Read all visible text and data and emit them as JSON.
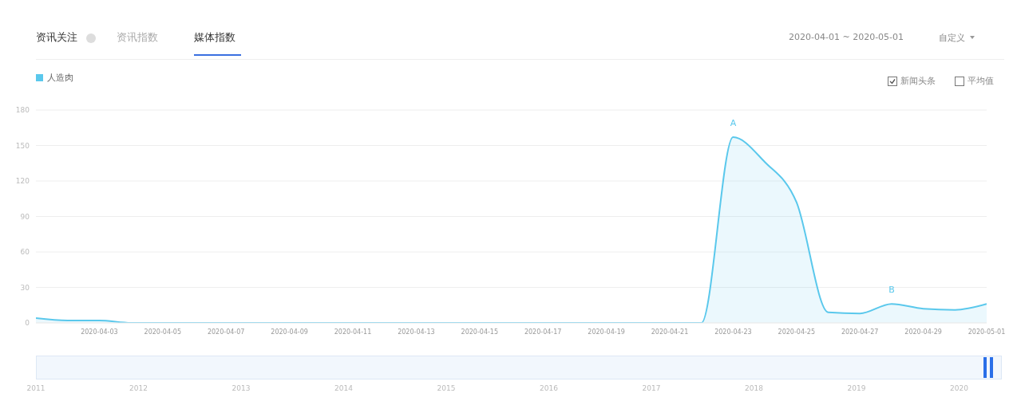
{
  "chart_data": {
    "type": "area",
    "title": "资讯关注",
    "subtitle": "2020-04-01 ~ 2020-05-01",
    "x": [
      "2020-04-01",
      "2020-04-02",
      "2020-04-03",
      "2020-04-04",
      "2020-04-05",
      "2020-04-06",
      "2020-04-07",
      "2020-04-08",
      "2020-04-09",
      "2020-04-10",
      "2020-04-11",
      "2020-04-12",
      "2020-04-13",
      "2020-04-14",
      "2020-04-15",
      "2020-04-16",
      "2020-04-17",
      "2020-04-18",
      "2020-04-19",
      "2020-04-20",
      "2020-04-21",
      "2020-04-22",
      "2020-04-23",
      "2020-04-24",
      "2020-04-25",
      "2020-04-26",
      "2020-04-27",
      "2020-04-28",
      "2020-04-29",
      "2020-04-30",
      "2020-05-01"
    ],
    "series": [
      {
        "name": "人造肉",
        "color": "#5ac8ec",
        "values": [
          4,
          2,
          2,
          0,
          0,
          0,
          0,
          0,
          0,
          0,
          0,
          0,
          0,
          0,
          0,
          0,
          0,
          0,
          0,
          0,
          0,
          0,
          157,
          136,
          102,
          9,
          8,
          16,
          12,
          11,
          16
        ]
      }
    ],
    "xlim": [
      "2020-04-01",
      "2020-05-01"
    ],
    "xticks": [
      "2020-04-03",
      "2020-04-05",
      "2020-04-07",
      "2020-04-09",
      "2020-04-11",
      "2020-04-13",
      "2020-04-15",
      "2020-04-17",
      "2020-04-19",
      "2020-04-21",
      "2020-04-23",
      "2020-04-25",
      "2020-04-27",
      "2020-04-29",
      "2020-05-01"
    ],
    "ylim": [
      0,
      180
    ],
    "yticks": [
      0,
      30,
      60,
      90,
      120,
      150,
      180
    ],
    "grid": "y",
    "legend": "top left",
    "marker": "none",
    "line_style": "solid",
    "annotations": [
      "资讯指数",
      "媒体指数",
      "自定义",
      "新闻头条",
      "平均值",
      {
        "text": "A",
        "x": "2020-04-23",
        "y": 157
      },
      {
        "text": "B",
        "x": "2020-04-28",
        "y": 16
      },
      "2011",
      "2012",
      "2013",
      "2014",
      "2015",
      "2016",
      "2017",
      "2018",
      "2019",
      "2020"
    ]
  }
}
